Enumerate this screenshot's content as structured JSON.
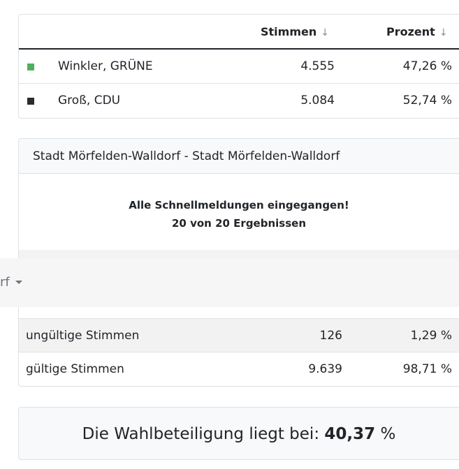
{
  "results": {
    "headers": {
      "votes": "Stimmen",
      "percent": "Prozent",
      "sort_arrow": "↓"
    },
    "rows": [
      {
        "color": "#4fae61",
        "name": "Winkler, GRÜNE",
        "votes": "4.555",
        "percent": "47,26 %"
      },
      {
        "color": "#2b2b2b",
        "name": "Groß, CDU",
        "votes": "5.084",
        "percent": "52,74 %"
      }
    ]
  },
  "district": {
    "title": "Stadt Mörfelden-Walldorf - Stadt Mörfelden-Walldorf",
    "notice_line1": "Alle Schnellmeldungen eingegangen!",
    "notice_line2": "20 von 20 Ergebnissen",
    "invalid": {
      "label": "ungültige Stimmen",
      "votes": "126",
      "percent": "1,29 %"
    },
    "valid": {
      "label": "gültige Stimmen",
      "votes": "9.639",
      "percent": "98,71 %"
    }
  },
  "dropdown": {
    "visible_text": "rf"
  },
  "turnout": {
    "prefix": "Die Wahlbeteiligung liegt bei: ",
    "value": "40,37",
    "unit": " %"
  }
}
